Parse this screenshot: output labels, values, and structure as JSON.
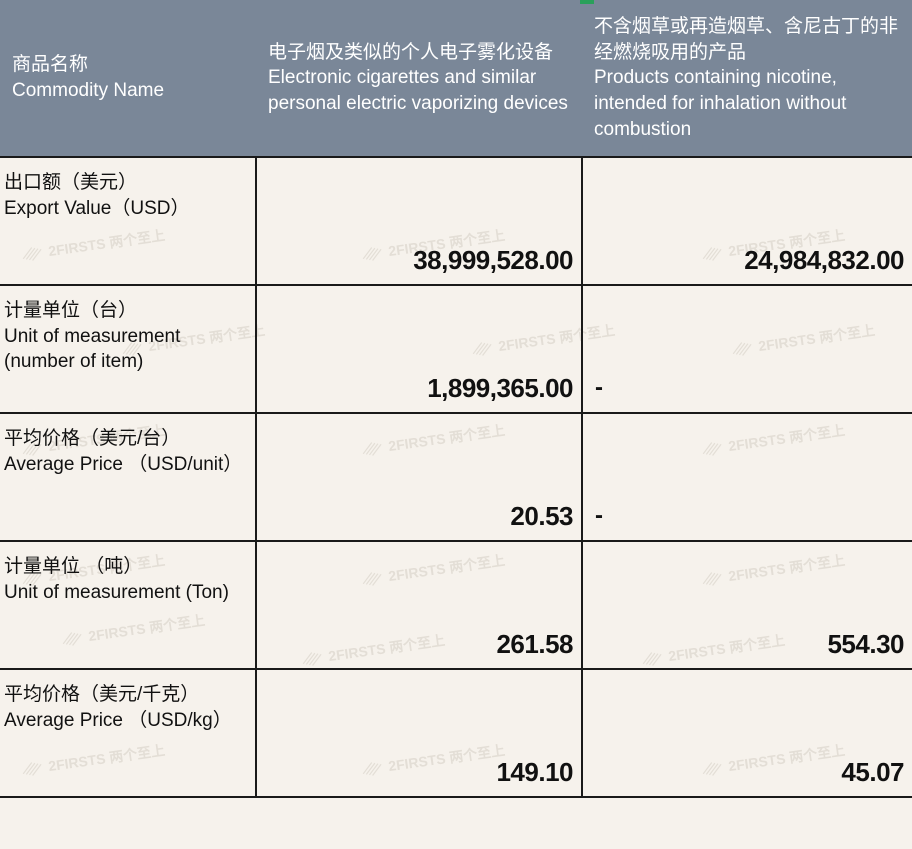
{
  "table": {
    "header": {
      "col1_cn": "商品名称",
      "col1_en": "Commodity Name",
      "col2_cn": "电子烟及类似的个人电子雾化设备",
      "col2_en": "Electronic cigarettes and similar personal electric vaporizing devices",
      "col3_cn": "不含烟草或再造烟草、含尼古丁的非经燃烧吸用的产品",
      "col3_en": "Products containing nicotine, intended for inhalation without combustion"
    },
    "rows": [
      {
        "label_cn": "出口额（美元）",
        "label_en": " Export Value（USD）",
        "v1": "38,999,528.00",
        "v2": "24,984,832.00"
      },
      {
        "label_cn": "计量单位（台）",
        "label_en": "Unit of measurement (number of item)",
        "v1": "1,899,365.00",
        "v2": "-"
      },
      {
        "label_cn": "平均价格（美元/台）",
        "label_en": "Average Price （USD/unit）",
        "v1": "20.53",
        "v2": "-"
      },
      {
        "label_cn": "计量单位 （吨）",
        "label_en": "Unit of measurement (Ton)",
        "v1": "261.58",
        "v2": "554.30"
      },
      {
        "label_cn": "平均价格（美元/千克）",
        "label_en": "Average Price （USD/kg）",
        "v1": "149.10",
        "v2": "45.07"
      }
    ]
  },
  "watermark": {
    "text": "2FIRSTS 两个至上"
  },
  "colors": {
    "header_bg": "#7a8798",
    "header_fg": "#ffffff",
    "body_bg": "#f6f2ec",
    "border": "#1a1a1a",
    "text": "#111111",
    "watermark": "#d8d2c8"
  }
}
